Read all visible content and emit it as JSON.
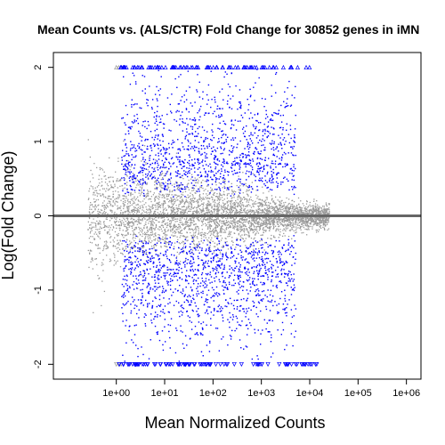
{
  "chart_data": {
    "type": "scatter",
    "title": "Mean Counts vs. (ALS/CTR) Fold Change for 30852 genes in iMN",
    "xlabel": "Mean Normalized Counts",
    "ylabel": "Log(Fold Change)",
    "x_scale": "log10",
    "xlim": [
      0.05,
      2000000
    ],
    "ylim": [
      -2.2,
      2.2
    ],
    "x_ticks": [
      {
        "value": 1,
        "label": "1e+00"
      },
      {
        "value": 10,
        "label": "1e+01"
      },
      {
        "value": 100,
        "label": "1e+02"
      },
      {
        "value": 1000,
        "label": "1e+03"
      },
      {
        "value": 10000,
        "label": "1e+04"
      },
      {
        "value": 100000,
        "label": "1e+05"
      },
      {
        "value": 1000000,
        "label": "1e+06"
      }
    ],
    "y_ticks": [
      {
        "value": -2,
        "label": "-2"
      },
      {
        "value": -1,
        "label": "-1"
      },
      {
        "value": 0,
        "label": "0"
      },
      {
        "value": 1,
        "label": "1"
      },
      {
        "value": 2,
        "label": "2"
      }
    ],
    "reference_line": {
      "y": 0,
      "color": "#666666"
    },
    "series": [
      {
        "color": "#999999",
        "marker": "dot",
        "description_hidden": true
      },
      {
        "color": "#0000ff",
        "marker": "dot"
      }
    ],
    "grid": false,
    "total_genes": 30852
  }
}
